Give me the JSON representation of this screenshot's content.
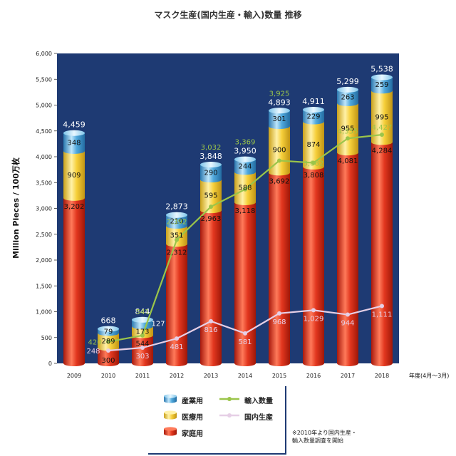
{
  "title": "マスク生産(国内生産・輸入)数量 推移",
  "chart_data": {
    "type": "bar",
    "categories": [
      "2009",
      "2010",
      "2011",
      "2012",
      "2013",
      "2014",
      "2015",
      "2016",
      "2017",
      "2018"
    ],
    "series": [
      {
        "name": "家庭用",
        "stack": "bar",
        "values": [
          3202,
          300,
          544,
          2312,
          2963,
          3118,
          3692,
          3808,
          4081,
          4284
        ]
      },
      {
        "name": "医療用",
        "stack": "bar",
        "values": [
          909,
          289,
          173,
          351,
          595,
          588,
          900,
          874,
          955,
          995
        ]
      },
      {
        "name": "産業用",
        "stack": "bar",
        "values": [
          348,
          79,
          127,
          210,
          290,
          244,
          301,
          229,
          263,
          259
        ]
      },
      {
        "name": "輸入数量",
        "type": "line",
        "values": [
          null,
          420,
          541,
          2392,
          3032,
          3369,
          3925,
          3882,
          4355,
          4427
        ]
      },
      {
        "name": "国内生産",
        "type": "line",
        "values": [
          null,
          248,
          303,
          481,
          816,
          581,
          968,
          1029,
          944,
          1111
        ]
      }
    ],
    "totals": [
      4459,
      668,
      844,
      2873,
      3848,
      3950,
      4893,
      4911,
      5299,
      5538
    ],
    "value_labels": {
      "家庭用": [
        "3,202",
        "300",
        "544",
        "2,312",
        "2,963",
        "3,118",
        "3,692",
        "3,808",
        "4,081",
        "4,284"
      ],
      "医療用": [
        "909",
        "289",
        "173",
        "351",
        "595",
        "588",
        "900",
        "874",
        "955",
        "995"
      ],
      "産業用": [
        "348",
        "79",
        "127",
        "210",
        "290",
        "244",
        "301",
        "229",
        "263",
        "259"
      ],
      "totals": [
        "4,459",
        "668",
        "844",
        "2,873",
        "3,848",
        "3,950",
        "4,893",
        "4,911",
        "5,299",
        "5,538"
      ],
      "輸入数量": [
        null,
        "420",
        "541",
        "2,392",
        "3,032",
        "3,369",
        "3,925",
        "3,882",
        "4,355",
        "4,427"
      ],
      "国内生産": [
        null,
        "248",
        "303",
        "481",
        "816",
        "581",
        "968",
        "1,029",
        "944",
        "1,111"
      ]
    },
    "ylabel": "Million Pieces / 100万枚",
    "xlabel": "年度(4月〜3月)",
    "ylim": [
      0,
      6000
    ],
    "yticks": [
      0,
      500,
      1000,
      1500,
      2000,
      2500,
      3000,
      3500,
      4000,
      4500,
      5000,
      5500,
      6000
    ],
    "ytick_labels": [
      "0",
      "500",
      "1,000",
      "1,500",
      "2,000",
      "2,500",
      "3,000",
      "3,500",
      "4,000",
      "4,500",
      "5,000",
      "5,500",
      "6,000"
    ],
    "grid": false,
    "legend_position": "bottom-center"
  },
  "colors": {
    "plot_bg": "#1e3a73",
    "家庭用": "#e2371f",
    "医療用": "#f6cf3a",
    "産業用": "#4fa8dc",
    "輸入数量": "#9bc54a",
    "国内生産": "#e6cfe6"
  },
  "legend": {
    "industrial": "産業用",
    "medical": "医療用",
    "household": "家庭用",
    "import": "輸入数量",
    "domestic": "国内生産"
  },
  "note": {
    "line1": "※2010年より国内生産・",
    "line2": "輸入数量調査を開始"
  }
}
